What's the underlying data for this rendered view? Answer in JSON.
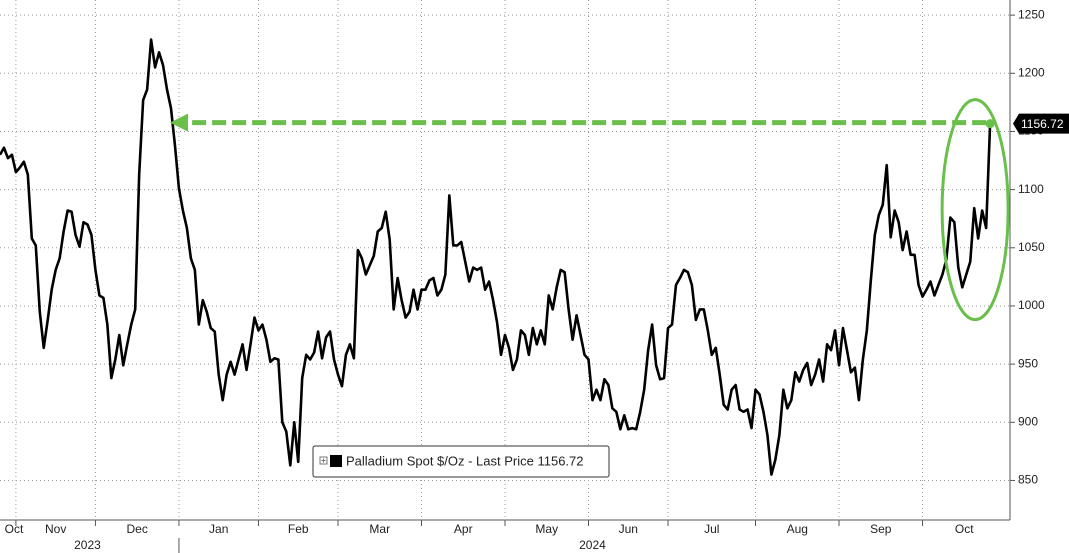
{
  "chart_data": {
    "type": "line",
    "series": [
      {
        "name": "Palladium Spot $/Oz - Last Price 1156.72",
        "color": "#000000",
        "values": [
          1130,
          1136,
          1127,
          1130,
          1115,
          1119,
          1124,
          1113,
          1058,
          1052,
          995,
          964,
          988,
          1014,
          1031,
          1041,
          1064,
          1082,
          1081,
          1061,
          1051,
          1072,
          1070,
          1061,
          1031,
          1009,
          1007,
          984,
          938,
          954,
          975,
          949,
          967,
          984,
          997,
          1113,
          1177,
          1186,
          1229,
          1205,
          1218,
          1207,
          1186,
          1170,
          1138,
          1101,
          1082,
          1067,
          1041,
          1031,
          984,
          1005,
          995,
          981,
          978,
          941,
          919,
          941,
          952,
          941,
          954,
          967,
          945,
          967,
          990,
          979,
          984,
          971,
          952,
          955,
          954,
          900,
          892,
          863,
          900,
          866,
          938,
          958,
          954,
          960,
          978,
          955,
          973,
          978,
          954,
          941,
          931,
          958,
          967,
          955,
          1048,
          1041,
          1027,
          1035,
          1043,
          1064,
          1067,
          1081,
          1057,
          997,
          1024,
          1005,
          990,
          995,
          1014,
          997,
          1014,
          1014,
          1022,
          1024,
          1009,
          1014,
          1027,
          1095,
          1052,
          1052,
          1055,
          1038,
          1021,
          1033,
          1031,
          1033,
          1014,
          1021,
          1005,
          986,
          958,
          975,
          964,
          945,
          954,
          979,
          975,
          958,
          981,
          967,
          979,
          967,
          1009,
          997,
          1016,
          1031,
          1029,
          997,
          971,
          992,
          975,
          958,
          954,
          919,
          928,
          919,
          937,
          932,
          912,
          909,
          894,
          906,
          894,
          895,
          894,
          909,
          928,
          962,
          984,
          949,
          937,
          938,
          981,
          984,
          1018,
          1024,
          1031,
          1029,
          1018,
          988,
          997,
          997,
          979,
          958,
          964,
          941,
          915,
          911,
          928,
          932,
          911,
          909,
          911,
          895,
          928,
          924,
          909,
          889,
          855,
          868,
          889,
          928,
          912,
          919,
          943,
          935,
          945,
          951,
          932,
          941,
          954,
          935,
          967,
          962,
          979,
          949,
          981,
          962,
          943,
          947,
          919,
          954,
          979,
          1022,
          1061,
          1078,
          1087,
          1121,
          1059,
          1082,
          1072,
          1048,
          1064,
          1044,
          1044,
          1018,
          1008,
          1014,
          1021,
          1009,
          1018,
          1027,
          1040,
          1076,
          1072,
          1033,
          1016,
          1027,
          1038,
          1084,
          1058,
          1082,
          1067,
          1156.72
        ]
      }
    ],
    "xlim": [
      0,
      254
    ],
    "xticks": [
      {
        "value": 0,
        "label": "Oct"
      },
      {
        "value": 4,
        "label": "Nov"
      },
      {
        "value": 24,
        "label": "Dec"
      },
      {
        "value": 45,
        "label": "Jan"
      },
      {
        "value": 65,
        "label": "Feb"
      },
      {
        "value": 85,
        "label": "Mar"
      },
      {
        "value": 106,
        "label": "Apr"
      },
      {
        "value": 127,
        "label": "May"
      },
      {
        "value": 148,
        "label": "Jun"
      },
      {
        "value": 168,
        "label": "Jul"
      },
      {
        "value": 190,
        "label": "Aug"
      },
      {
        "value": 211,
        "label": "Sep"
      },
      {
        "value": 232,
        "label": "Oct"
      }
    ],
    "year_ticks": [
      {
        "value": 22,
        "label": "2023"
      },
      {
        "value": 149,
        "label": "2024"
      }
    ],
    "ylim": [
      816,
      1263
    ],
    "yticks": [
      850,
      900,
      950,
      1000,
      1050,
      1100,
      1150,
      1200,
      1250
    ],
    "grid": true,
    "annotation_color": "#6abf4b"
  }
}
